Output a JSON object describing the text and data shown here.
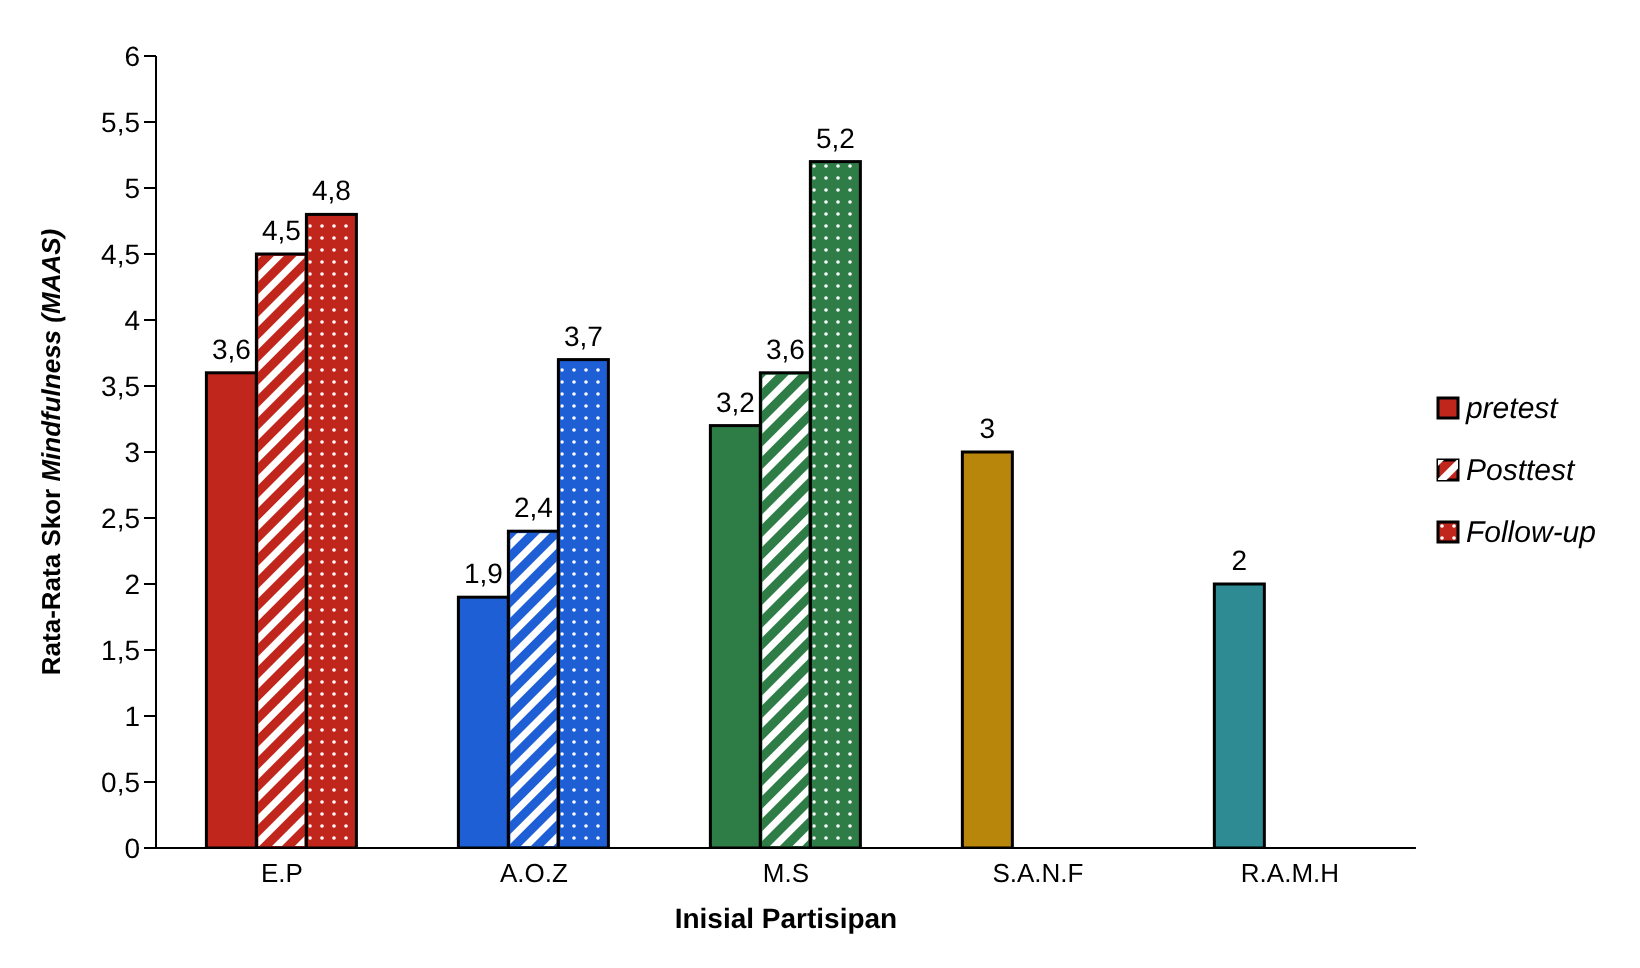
{
  "chart_data": {
    "type": "bar",
    "xlabel": "Inisial Partisipan",
    "ylabel": "Rata-Rata Skor Mindfulness (MAAS)",
    "categories": [
      "E.P",
      "A.O.Z",
      "M.S",
      "S.A.N.F",
      "R.A.M.H"
    ],
    "series": [
      {
        "name": "pretest",
        "color": "#c0261c",
        "colors": [
          "#c0261c",
          "#1f5fd6",
          "#2e7d46",
          "#b8860b",
          "#2e8b94"
        ],
        "values": [
          3.6,
          1.9,
          3.2,
          3,
          2
        ],
        "value_labels": [
          "3,6",
          "1,9",
          "3,2",
          "3",
          "2"
        ]
      },
      {
        "name": "Posttest",
        "color": "#c0261c",
        "colors": [
          "#c0261c",
          "#1f5fd6",
          "#2e7d46",
          null,
          null
        ],
        "values": [
          4.5,
          2.4,
          3.6,
          null,
          null
        ],
        "value_labels": [
          "4,5",
          "2,4",
          "3,6",
          null,
          null
        ]
      },
      {
        "name": "Follow-up",
        "color": "#c0261c",
        "colors": [
          "#c0261c",
          "#1f5fd6",
          "#2e7d46",
          null,
          null
        ],
        "values": [
          4.8,
          3.7,
          5.2,
          null,
          null
        ],
        "value_labels": [
          "4,8",
          "3,7",
          "5,2",
          null,
          null
        ]
      }
    ],
    "ylim": [
      0,
      6
    ],
    "yticks": [
      0,
      {
        "value": 0.5,
        "label": "0,5"
      },
      1,
      {
        "value": 1.5,
        "label": "1,5"
      },
      2,
      {
        "value": 2.5,
        "label": "2,5"
      },
      3,
      {
        "value": 3.5,
        "label": "3,5"
      },
      4,
      {
        "value": 4.5,
        "label": "4,5"
      },
      5,
      {
        "value": 5.5,
        "label": "5,5"
      },
      6
    ],
    "legend": "right",
    "grid": false
  }
}
